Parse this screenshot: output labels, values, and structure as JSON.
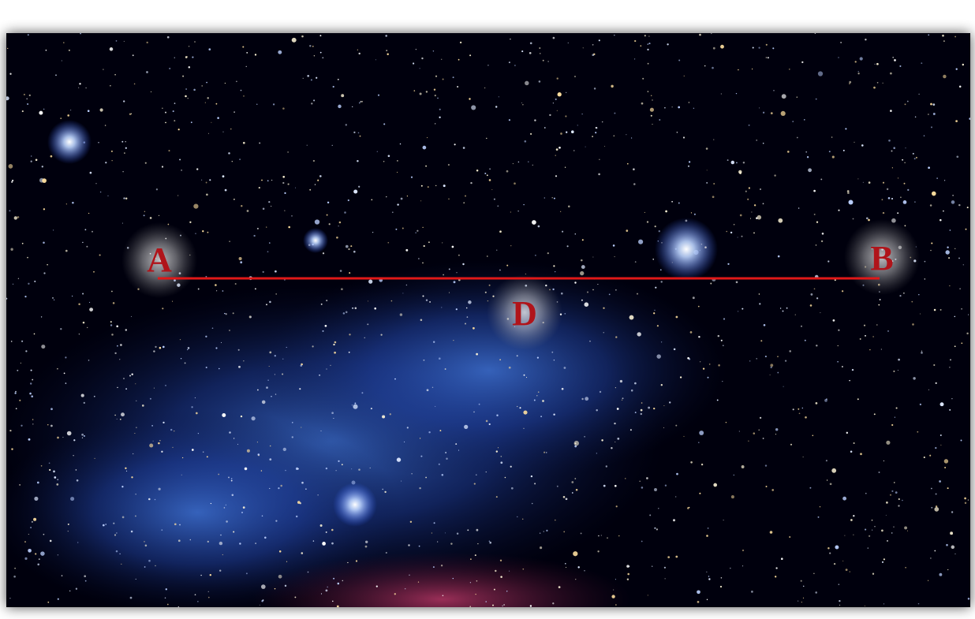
{
  "points": [
    {
      "label": "A"
    },
    {
      "label": "B"
    },
    {
      "label": "D"
    }
  ]
}
